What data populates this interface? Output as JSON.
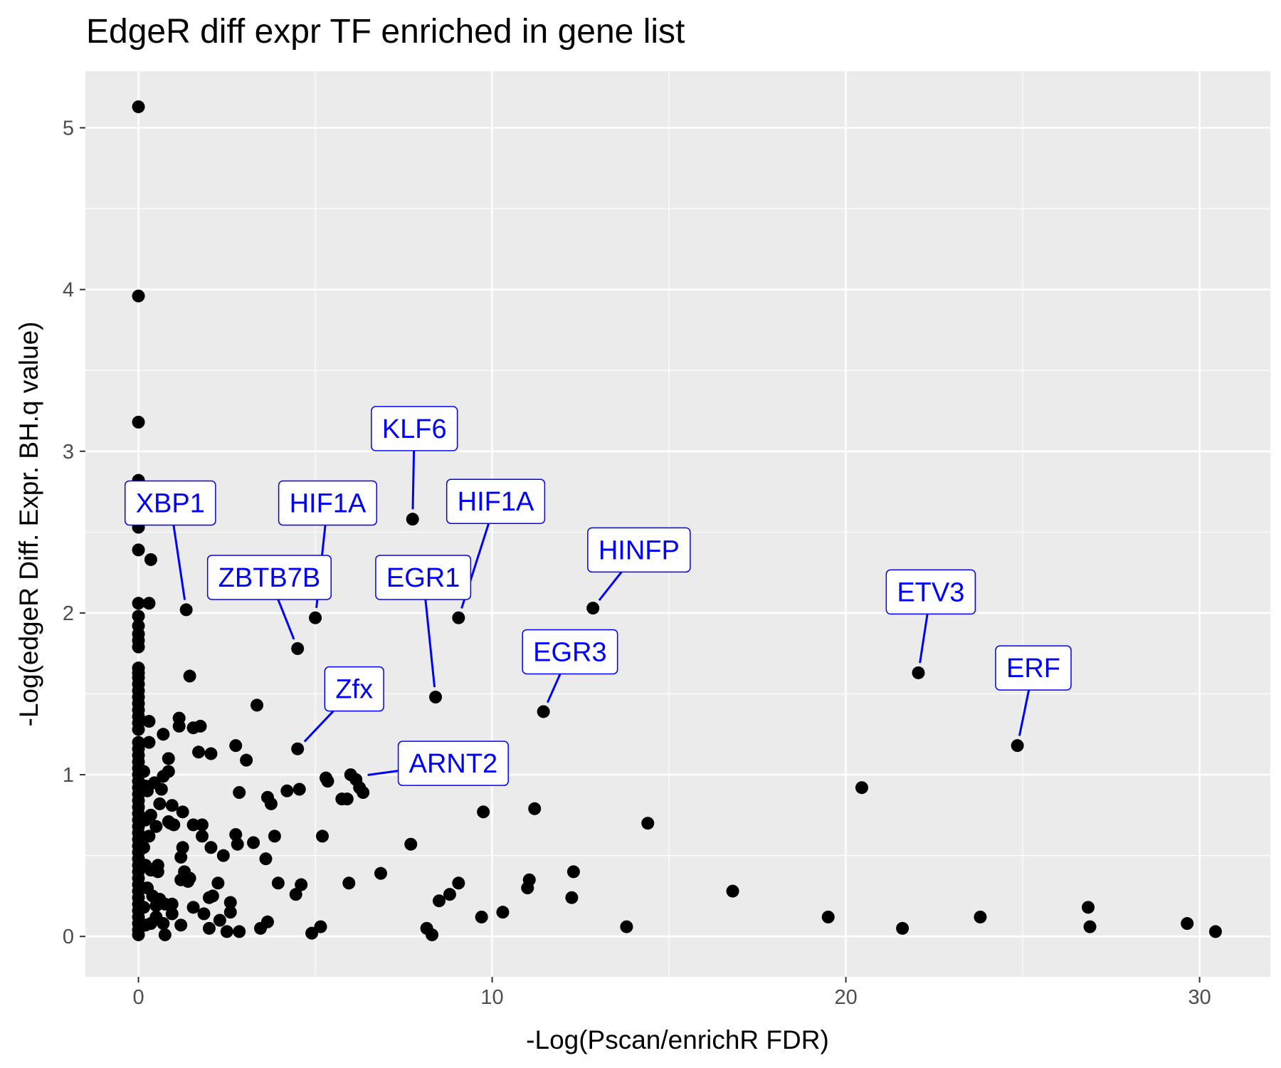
{
  "chart_data": {
    "type": "scatter",
    "title": "EdgeR diff expr TF enriched in gene list",
    "xlabel": "-Log(Pscan/enrichR FDR)",
    "ylabel": "-Log(edgeR Diff. Expr. BH.q value)",
    "xlim": [
      -1.5,
      32.0
    ],
    "ylim": [
      -0.25,
      5.35
    ],
    "x_ticks": [
      0,
      10,
      20,
      30
    ],
    "y_ticks": [
      0,
      1,
      2,
      3,
      4,
      5
    ],
    "x_tick_labels": [
      "0",
      "10",
      "20",
      "30"
    ],
    "y_tick_labels": [
      "0",
      "1",
      "2",
      "3",
      "4",
      "5"
    ],
    "grid": true,
    "panel_background": "#ebebeb",
    "point_color": "#000000",
    "label_color": "#0000ff",
    "points": [
      [
        0,
        5.13
      ],
      [
        0,
        3.96
      ],
      [
        0,
        3.18
      ],
      [
        0,
        2.82
      ],
      [
        0,
        2.53
      ],
      [
        0,
        2.39
      ],
      [
        0,
        2.06
      ],
      [
        0,
        1.98
      ],
      [
        0,
        1.92
      ],
      [
        0,
        1.87
      ],
      [
        0,
        1.83
      ],
      [
        0,
        1.79
      ],
      [
        0,
        1.66
      ],
      [
        0,
        1.63
      ],
      [
        0,
        1.6
      ],
      [
        0,
        1.56
      ],
      [
        0,
        1.52
      ],
      [
        0,
        1.48
      ],
      [
        0,
        1.44
      ],
      [
        0,
        1.4
      ],
      [
        0,
        1.36
      ],
      [
        0,
        1.32
      ],
      [
        0,
        1.28
      ],
      [
        0,
        1.2
      ],
      [
        0,
        1.16
      ],
      [
        0,
        1.12
      ],
      [
        0,
        1.08
      ],
      [
        0,
        1.04
      ],
      [
        0,
        1.0
      ],
      [
        0,
        0.96
      ],
      [
        0,
        0.92
      ],
      [
        0,
        0.88
      ],
      [
        0,
        0.84
      ],
      [
        0,
        0.8
      ],
      [
        0,
        0.76
      ],
      [
        0,
        0.72
      ],
      [
        0,
        0.68
      ],
      [
        0,
        0.64
      ],
      [
        0,
        0.6
      ],
      [
        0,
        0.56
      ],
      [
        0,
        0.52
      ],
      [
        0,
        0.48
      ],
      [
        0,
        0.44
      ],
      [
        0,
        0.4
      ],
      [
        0,
        0.36
      ],
      [
        0,
        0.32
      ],
      [
        0,
        0.28
      ],
      [
        0,
        0.24
      ],
      [
        0,
        0.2
      ],
      [
        0,
        0.16
      ],
      [
        0,
        0.12
      ],
      [
        0,
        0.08
      ],
      [
        0,
        0.04
      ],
      [
        0,
        0.01
      ],
      [
        0.15,
        1.02
      ],
      [
        0.2,
        0.93
      ],
      [
        0.2,
        0.72
      ],
      [
        0.15,
        0.55
      ],
      [
        0.2,
        0.44
      ],
      [
        0.25,
        0.3
      ],
      [
        0.15,
        0.18
      ],
      [
        0.2,
        0.07
      ],
      [
        0.3,
        2.06
      ],
      [
        0.35,
        2.33
      ],
      [
        0.3,
        1.33
      ],
      [
        0.3,
        1.2
      ],
      [
        0.25,
        0.9
      ],
      [
        0.35,
        0.75
      ],
      [
        0.3,
        0.62
      ],
      [
        0.35,
        0.41
      ],
      [
        0.4,
        0.25
      ],
      [
        0.35,
        0.08
      ],
      [
        0.45,
        0.95
      ],
      [
        0.5,
        0.68
      ],
      [
        0.5,
        0.19
      ],
      [
        0.5,
        0.12
      ],
      [
        0.55,
        0.44
      ],
      [
        0.55,
        0.4
      ],
      [
        0.6,
        0.82
      ],
      [
        0.6,
        0.23
      ],
      [
        0.65,
        0.91
      ],
      [
        0.7,
        0.99
      ],
      [
        0.7,
        1.25
      ],
      [
        0.7,
        0.08
      ],
      [
        0.75,
        0.2
      ],
      [
        0.75,
        0.01
      ],
      [
        0.85,
        1.02
      ],
      [
        0.85,
        1.1
      ],
      [
        0.85,
        0.71
      ],
      [
        0.9,
        0.7
      ],
      [
        0.95,
        0.81
      ],
      [
        0.95,
        0.14
      ],
      [
        0.95,
        0.2
      ],
      [
        1.0,
        0.69
      ],
      [
        1.15,
        1.35
      ],
      [
        1.15,
        1.3
      ],
      [
        1.2,
        0.49
      ],
      [
        1.2,
        0.35
      ],
      [
        1.2,
        0.07
      ],
      [
        1.25,
        0.55
      ],
      [
        1.25,
        0.77
      ],
      [
        1.3,
        0.4
      ],
      [
        1.35,
        2.02
      ],
      [
        1.4,
        0.34
      ],
      [
        1.45,
        0.36
      ],
      [
        1.45,
        1.61
      ],
      [
        1.55,
        1.29
      ],
      [
        1.55,
        0.69
      ],
      [
        1.55,
        0.18
      ],
      [
        1.7,
        1.14
      ],
      [
        1.75,
        1.3
      ],
      [
        1.8,
        0.69
      ],
      [
        1.8,
        0.62
      ],
      [
        1.85,
        0.14
      ],
      [
        2.0,
        0.24
      ],
      [
        2.0,
        0.05
      ],
      [
        2.05,
        1.13
      ],
      [
        2.05,
        0.55
      ],
      [
        2.1,
        0.25
      ],
      [
        2.25,
        0.33
      ],
      [
        2.3,
        0.1
      ],
      [
        2.4,
        0.5
      ],
      [
        2.5,
        0.03
      ],
      [
        2.6,
        0.21
      ],
      [
        2.6,
        0.15
      ],
      [
        2.75,
        1.18
      ],
      [
        2.75,
        0.63
      ],
      [
        2.8,
        0.57
      ],
      [
        2.85,
        0.03
      ],
      [
        2.85,
        0.89
      ],
      [
        3.05,
        1.09
      ],
      [
        3.25,
        0.58
      ],
      [
        3.35,
        1.43
      ],
      [
        3.45,
        0.05
      ],
      [
        3.6,
        0.48
      ],
      [
        3.65,
        0.09
      ],
      [
        3.65,
        0.86
      ],
      [
        3.75,
        0.82
      ],
      [
        3.85,
        0.62
      ],
      [
        3.95,
        0.33
      ],
      [
        4.2,
        0.9
      ],
      [
        4.45,
        0.26
      ],
      [
        4.5,
        1.78
      ],
      [
        4.5,
        1.16
      ],
      [
        4.55,
        0.91
      ],
      [
        4.6,
        0.32
      ],
      [
        4.9,
        0.02
      ],
      [
        5.0,
        1.97
      ],
      [
        5.15,
        0.06
      ],
      [
        5.2,
        0.62
      ],
      [
        5.3,
        0.98
      ],
      [
        5.35,
        0.96
      ],
      [
        5.75,
        0.85
      ],
      [
        5.9,
        0.85
      ],
      [
        5.95,
        0.33
      ],
      [
        6.0,
        1.0
      ],
      [
        6.15,
        0.97
      ],
      [
        6.25,
        0.92
      ],
      [
        6.35,
        0.89
      ],
      [
        6.85,
        0.39
      ],
      [
        7.7,
        0.57
      ],
      [
        7.75,
        2.58
      ],
      [
        8.15,
        0.05
      ],
      [
        8.3,
        0.01
      ],
      [
        8.4,
        1.48
      ],
      [
        8.5,
        0.22
      ],
      [
        8.8,
        0.26
      ],
      [
        9.05,
        1.97
      ],
      [
        9.05,
        0.33
      ],
      [
        9.7,
        0.12
      ],
      [
        9.75,
        0.77
      ],
      [
        10.3,
        0.15
      ],
      [
        11.0,
        0.3
      ],
      [
        11.05,
        0.35
      ],
      [
        11.2,
        0.79
      ],
      [
        11.45,
        1.39
      ],
      [
        12.25,
        0.24
      ],
      [
        12.3,
        0.4
      ],
      [
        12.85,
        2.03
      ],
      [
        13.8,
        0.06
      ],
      [
        14.4,
        0.7
      ],
      [
        16.8,
        0.28
      ],
      [
        19.5,
        0.12
      ],
      [
        20.45,
        0.92
      ],
      [
        21.6,
        0.05
      ],
      [
        22.05,
        1.63
      ],
      [
        23.8,
        0.12
      ],
      [
        24.85,
        1.18
      ],
      [
        26.85,
        0.18
      ],
      [
        26.9,
        0.06
      ],
      [
        29.65,
        0.08
      ],
      [
        30.45,
        0.03
      ]
    ],
    "labels": [
      {
        "text": "KLF6",
        "x": 7.75,
        "y": 2.58,
        "lx": 7.8,
        "ly": 3.14
      },
      {
        "text": "XBP1",
        "x": 1.35,
        "y": 2.02,
        "lx": 0.9,
        "ly": 2.68
      },
      {
        "text": "HIF1A",
        "x": 5.0,
        "y": 1.97,
        "lx": 5.35,
        "ly": 2.68
      },
      {
        "text": "HIF1A",
        "x": 9.05,
        "y": 1.97,
        "lx": 10.1,
        "ly": 2.69
      },
      {
        "text": "ZBTB7B",
        "x": 4.5,
        "y": 1.78,
        "lx": 3.7,
        "ly": 2.22
      },
      {
        "text": "EGR1",
        "x": 8.4,
        "y": 1.48,
        "lx": 8.05,
        "ly": 2.22
      },
      {
        "text": "HINFP",
        "x": 12.85,
        "y": 2.03,
        "lx": 14.15,
        "ly": 2.39
      },
      {
        "text": "ETV3",
        "x": 22.05,
        "y": 1.63,
        "lx": 22.4,
        "ly": 2.13
      },
      {
        "text": "EGR3",
        "x": 11.45,
        "y": 1.39,
        "lx": 12.2,
        "ly": 1.76
      },
      {
        "text": "ERF",
        "x": 24.85,
        "y": 1.18,
        "lx": 25.3,
        "ly": 1.66
      },
      {
        "text": "Zfx",
        "x": 4.5,
        "y": 1.16,
        "lx": 6.1,
        "ly": 1.53
      },
      {
        "text": "ARNT2",
        "x": 6.2,
        "y": 0.99,
        "lx": 8.9,
        "ly": 1.07
      }
    ]
  }
}
